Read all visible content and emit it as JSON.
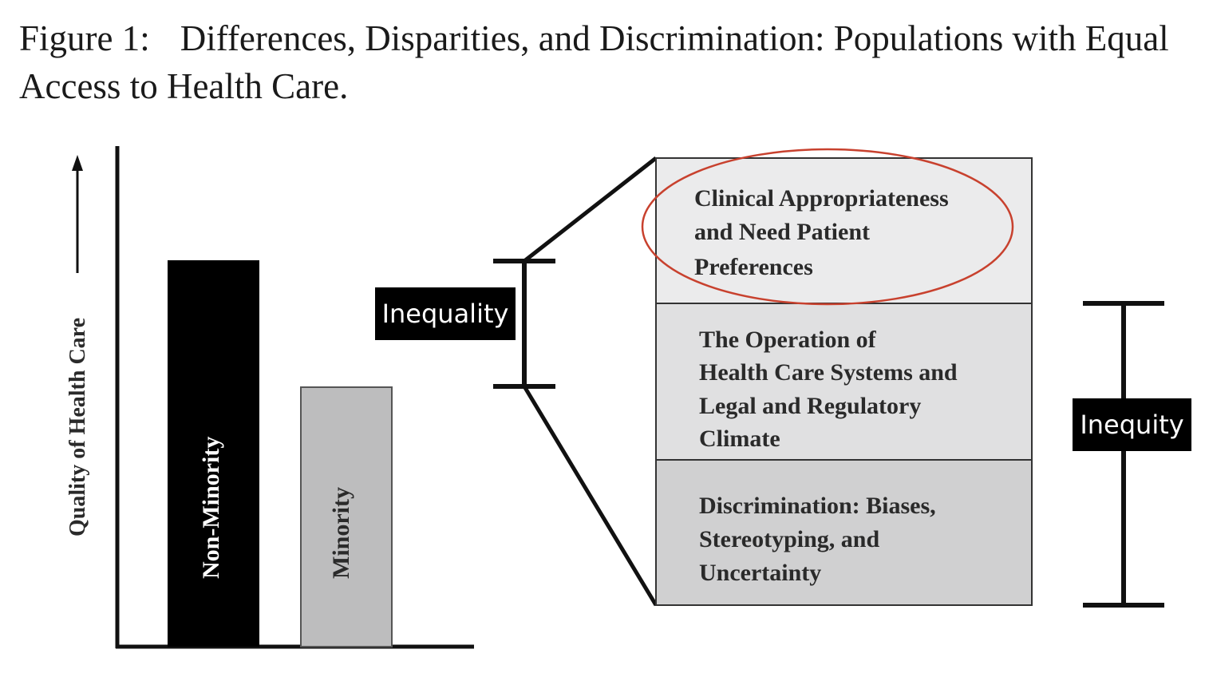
{
  "title": {
    "figure_label": "Figure 1:",
    "text": "Differences, Disparities, and Discrimination: Populations with Equal Access to Health Care."
  },
  "axis": {
    "ylabel": "Quality of Health Care"
  },
  "bars": [
    {
      "label": "Non-Minority",
      "color": "#000000",
      "text_color": "#ffffff"
    },
    {
      "label": "Minority",
      "color": "#bdbdbe",
      "text_color": "#2a2a2a"
    }
  ],
  "stack": [
    {
      "lines": [
        "Clinical Appropriateness",
        "and Need Patient",
        "Preferences"
      ],
      "fill": "#ebebec"
    },
    {
      "lines": [
        "The Operation of",
        "Health Care Systems and",
        "Legal and Regulatory",
        "Climate"
      ],
      "fill": "#e0e0e1"
    },
    {
      "lines": [
        "Discrimination: Biases,",
        "Stereotyping, and",
        "Uncertainty"
      ],
      "fill": "#d0d0d1"
    }
  ],
  "labels": {
    "inequality": "Inequality",
    "inequity": "Inequity"
  },
  "highlight_color": "#c8412e"
}
